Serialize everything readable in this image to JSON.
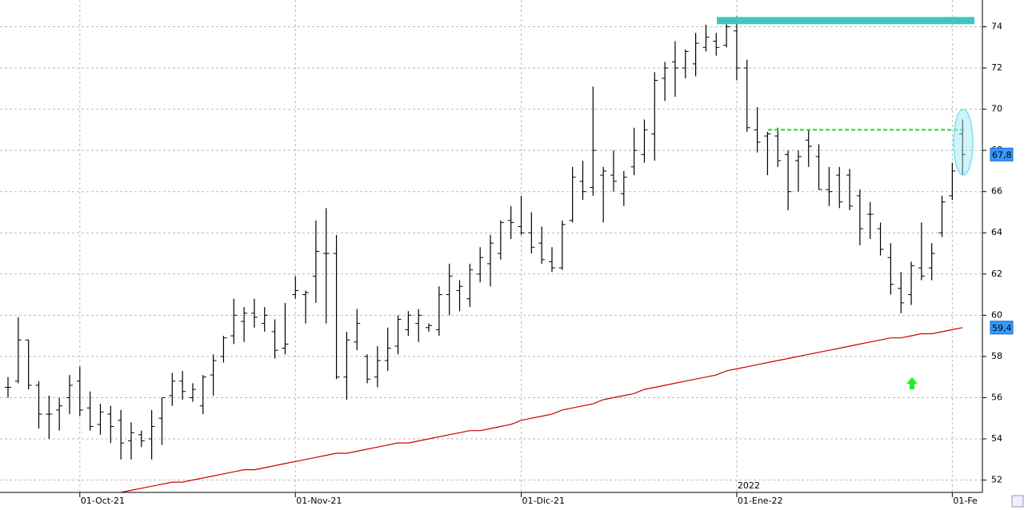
{
  "chart_data": {
    "type": "ohlc",
    "categories": [
      null,
      null,
      null,
      null,
      null,
      null,
      null,
      "01-Oct-21",
      null,
      null,
      null,
      null,
      null,
      null,
      null,
      null,
      null,
      null,
      null,
      null,
      null,
      null,
      null,
      null,
      null,
      null,
      null,
      null,
      "01-Nov-21",
      null,
      null,
      null,
      null,
      null,
      null,
      null,
      null,
      null,
      null,
      null,
      null,
      null,
      null,
      null,
      null,
      null,
      null,
      null,
      null,
      null,
      "01-Dic-21",
      null,
      null,
      null,
      null,
      null,
      null,
      null,
      null,
      null,
      null,
      null,
      null,
      null,
      null,
      null,
      null,
      null,
      null,
      null,
      null,
      "01-Ene-22",
      null,
      null,
      null,
      null,
      null,
      null,
      null,
      null,
      null,
      null,
      null,
      null,
      null,
      null,
      null,
      null,
      null,
      null,
      null,
      null,
      "01-Fe",
      null
    ],
    "year_marker": "2022",
    "open": [
      56.5,
      56.8,
      58.8,
      56.6,
      55.2,
      55.4,
      56.0,
      56.8,
      55.5,
      54.7,
      55.2,
      54.9,
      53.9,
      54.2,
      54.0,
      55.0,
      56.1,
      56.8,
      56.0,
      55.6,
      57.1,
      58.0,
      59.0,
      59.7,
      60.1,
      59.6,
      59.2,
      58.4,
      61.0,
      61.0,
      61.9,
      63.0,
      63.0,
      57.0,
      58.7,
      58.0,
      57.0,
      57.8,
      58.5,
      59.3,
      59.6,
      59.4,
      59.3,
      61.0,
      61.2,
      60.8,
      62.0,
      62.5,
      63.0,
      64.6,
      64.3,
      64.0,
      63.5,
      62.6,
      62.3,
      64.6,
      66.5,
      66.2,
      66.8,
      66.8,
      65.9,
      67.2,
      67.8,
      68.8,
      71.5,
      72.3,
      72.0,
      72.2,
      73.0,
      73.3,
      73.1,
      73.8,
      72.0,
      69.0,
      68.7,
      68.7,
      67.8,
      67.5,
      68.5,
      67.7,
      66.1,
      66.8,
      66.8,
      65.8,
      64.9,
      64.2,
      62.8,
      61.3,
      61.0,
      62.3,
      62.3,
      64.0,
      65.8,
      68.8
    ],
    "high": [
      57.0,
      59.9,
      58.8,
      56.8,
      56.1,
      56.0,
      57.1,
      57.5,
      56.3,
      55.7,
      55.6,
      55.4,
      54.8,
      54.4,
      55.4,
      56.0,
      57.2,
      57.3,
      56.7,
      57.1,
      58.1,
      59.0,
      60.8,
      60.4,
      60.8,
      60.4,
      59.8,
      60.6,
      61.9,
      61.2,
      64.6,
      65.2,
      63.9,
      59.2,
      60.3,
      58.1,
      58.5,
      59.4,
      60.0,
      60.2,
      60.3,
      59.6,
      61.4,
      62.5,
      61.7,
      62.5,
      63.3,
      63.9,
      64.6,
      65.3,
      65.8,
      65.0,
      64.3,
      63.3,
      64.6,
      67.2,
      67.5,
      71.1,
      67.2,
      68.0,
      67.0,
      69.1,
      69.5,
      71.8,
      72.3,
      73.3,
      72.9,
      73.7,
      74.1,
      73.7,
      74.3,
      74.5,
      72.4,
      70.1,
      68.9,
      69.1,
      68.0,
      68.0,
      69.0,
      68.3,
      67.2,
      67.2,
      67.1,
      66.1,
      65.5,
      64.5,
      63.5,
      62.1,
      62.6,
      64.5,
      63.5,
      65.8,
      67.4,
      69.5
    ],
    "low": [
      56.0,
      56.7,
      56.4,
      54.5,
      54.0,
      54.4,
      55.2,
      55.1,
      54.4,
      54.2,
      53.8,
      53.0,
      53.0,
      53.6,
      53.0,
      53.7,
      55.6,
      55.9,
      55.8,
      55.2,
      56.1,
      57.7,
      58.6,
      58.7,
      59.4,
      59.2,
      57.9,
      58.1,
      60.8,
      59.6,
      60.6,
      59.6,
      56.9,
      55.9,
      58.3,
      56.7,
      56.5,
      57.3,
      58.1,
      59.0,
      58.7,
      59.2,
      59.0,
      60.0,
      60.2,
      60.4,
      61.6,
      61.4,
      62.7,
      63.7,
      63.9,
      63.0,
      62.5,
      62.1,
      62.2,
      64.5,
      65.6,
      65.8,
      64.5,
      66.0,
      65.3,
      66.8,
      67.4,
      67.5,
      70.4,
      70.6,
      71.5,
      71.6,
      72.8,
      72.6,
      73.0,
      71.4,
      68.9,
      67.9,
      66.8,
      67.2,
      65.1,
      66.0,
      67.2,
      66.1,
      65.3,
      65.2,
      65.1,
      63.4,
      63.7,
      62.9,
      61.0,
      60.1,
      60.5,
      61.7,
      61.7,
      63.8,
      65.6,
      66.8
    ],
    "close": [
      56.5,
      58.8,
      56.6,
      55.2,
      55.2,
      55.6,
      56.6,
      55.4,
      54.6,
      55.3,
      54.6,
      53.8,
      54.3,
      53.9,
      54.6,
      56.0,
      56.8,
      56.3,
      56.4,
      57.0,
      57.8,
      58.9,
      60.0,
      60.1,
      59.9,
      60.0,
      58.3,
      58.6,
      61.2,
      61.1,
      63.1,
      63.0,
      57.0,
      58.8,
      59.6,
      56.9,
      57.8,
      58.4,
      59.8,
      60.0,
      60.0,
      59.5,
      61.0,
      61.9,
      61.4,
      62.2,
      62.8,
      63.5,
      64.5,
      64.5,
      64.0,
      63.3,
      62.7,
      62.3,
      64.4,
      66.7,
      66.0,
      68.0,
      67.0,
      66.5,
      66.7,
      68.0,
      69.0,
      71.4,
      72.0,
      72.0,
      72.8,
      73.2,
      73.5,
      73.0,
      74.0,
      72.0,
      69.1,
      68.4,
      68.8,
      67.5,
      66.0,
      67.7,
      68.2,
      66.1,
      66.0,
      65.5,
      65.3,
      64.2,
      64.9,
      63.2,
      61.5,
      60.6,
      62.4,
      61.9,
      63.0,
      65.5,
      67.0,
      67.8
    ],
    "bar_color": "#000000",
    "ma": {
      "color": "#cc0000",
      "values": [
        null,
        null,
        null,
        null,
        null,
        null,
        null,
        null,
        null,
        null,
        null,
        51.4,
        51.5,
        51.6,
        51.7,
        51.8,
        51.9,
        51.9,
        52.0,
        52.1,
        52.2,
        52.3,
        52.4,
        52.5,
        52.5,
        52.6,
        52.7,
        52.8,
        52.9,
        53.0,
        53.1,
        53.2,
        53.3,
        53.3,
        53.4,
        53.5,
        53.6,
        53.7,
        53.8,
        53.8,
        53.9,
        54.0,
        54.1,
        54.2,
        54.3,
        54.4,
        54.4,
        54.5,
        54.6,
        54.7,
        54.9,
        55.0,
        55.1,
        55.2,
        55.4,
        55.5,
        55.6,
        55.7,
        55.9,
        56.0,
        56.1,
        56.2,
        56.4,
        56.5,
        56.6,
        56.7,
        56.8,
        56.9,
        57.0,
        57.1,
        57.3,
        57.4,
        57.5,
        57.6,
        57.7,
        57.8,
        57.9,
        58.0,
        58.1,
        58.2,
        58.3,
        58.4,
        58.5,
        58.6,
        58.7,
        58.8,
        58.9,
        58.9,
        59.0,
        59.1,
        59.1,
        59.2,
        59.3,
        59.4
      ]
    },
    "hlines": [
      {
        "value": 74.3,
        "color": "#3cc8c0",
        "style": "solid"
      },
      {
        "value": 69.0,
        "color": "#22dd22",
        "style": "dashed"
      }
    ],
    "price_labels": [
      {
        "value": 67.8,
        "label": "67,8"
      },
      {
        "value": 59.4,
        "label": "59,4"
      }
    ],
    "ylim": [
      51.4,
      75.3
    ],
    "yticks": [
      52,
      54,
      56,
      58,
      60,
      62,
      64,
      66,
      68,
      70,
      72,
      74
    ],
    "grid": true
  }
}
